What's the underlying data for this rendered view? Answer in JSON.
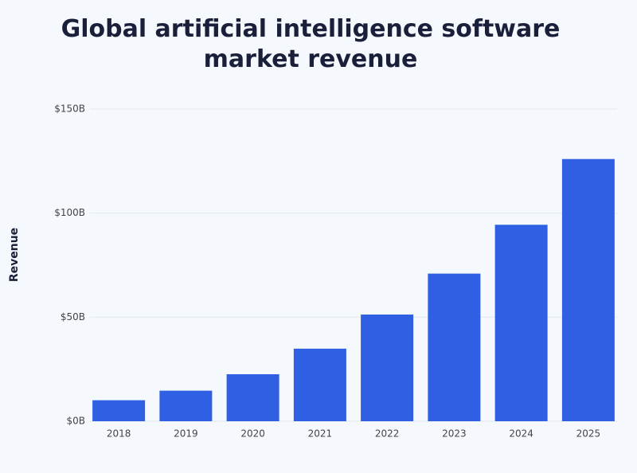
{
  "chart_data": {
    "type": "bar",
    "title": "Global artificial intelligence software market revenue",
    "y_label": "Revenue",
    "categories": [
      "2018",
      "2019",
      "2020",
      "2021",
      "2022",
      "2023",
      "2024",
      "2025"
    ],
    "values": [
      10.1,
      14.69,
      22.59,
      34.87,
      51.27,
      70.94,
      94.41,
      126
    ],
    "color": "#2f5fe3",
    "ylim": [
      0,
      150
    ],
    "yticks": [
      {
        "value": 0,
        "label": "$0B"
      },
      {
        "value": 50,
        "label": "$50B"
      },
      {
        "value": 100,
        "label": "$100B"
      },
      {
        "value": 150,
        "label": "$150B"
      }
    ],
    "grid": true
  }
}
